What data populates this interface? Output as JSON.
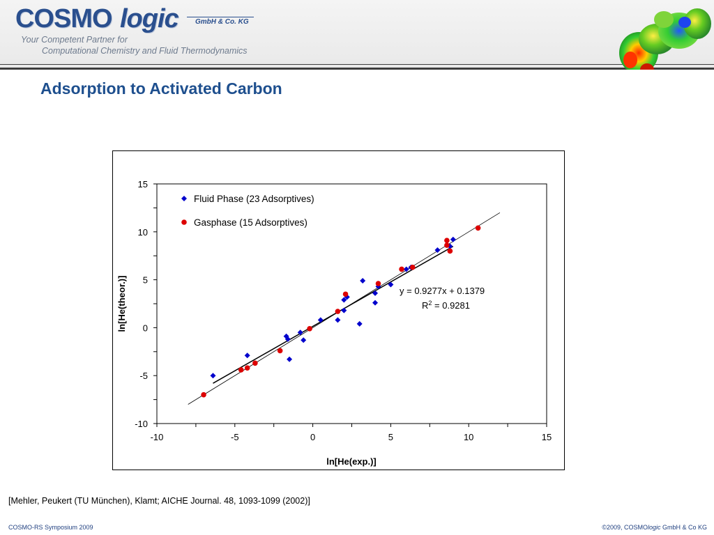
{
  "header": {
    "logo_cosmo": "COSMO",
    "logo_logic": "logic",
    "logo_gmbh": "GmbH & Co. KG",
    "tagline_1": "Your Competent Partner for",
    "tagline_2": "Computational Chemistry and Fluid Thermodynamics",
    "icon": "molecule-surface-icon"
  },
  "slide": {
    "title": "Adsorption to Activated Carbon"
  },
  "citation": "[Mehler, Peukert (TU München), Klamt; AICHE Journal. 48, 1093-1099 (2002)]",
  "footer": {
    "left": "COSMO-RS Symposium 2009",
    "right_prefix": "©2009, COSMO",
    "right_italic": "logic",
    "right_suffix": " GmbH & Co KG"
  },
  "chart_data": {
    "type": "scatter",
    "title": "",
    "xlabel": "ln[He(exp.)]",
    "ylabel": "ln[He(theor.)]",
    "xlim": [
      -10,
      15
    ],
    "ylim": [
      -10,
      15
    ],
    "xticks": [
      -10,
      -5,
      0,
      5,
      10,
      15
    ],
    "yticks": [
      -10,
      -5,
      0,
      5,
      10,
      15
    ],
    "grid": false,
    "legend": "top-left",
    "series": [
      {
        "name": "Fluid Phase (23 Adsorptives)",
        "marker": "diamond",
        "color": "#0000cc",
        "points": [
          [
            -6.4,
            -5.0
          ],
          [
            -4.2,
            -2.9
          ],
          [
            -1.7,
            -0.9
          ],
          [
            -1.6,
            -1.2
          ],
          [
            -1.5,
            -3.3
          ],
          [
            -0.8,
            -0.5
          ],
          [
            -0.6,
            -1.3
          ],
          [
            0.5,
            0.8
          ],
          [
            1.6,
            0.8
          ],
          [
            2.0,
            1.8
          ],
          [
            2.0,
            2.9
          ],
          [
            2.2,
            3.2
          ],
          [
            3.0,
            0.4
          ],
          [
            3.2,
            4.9
          ],
          [
            4.0,
            2.6
          ],
          [
            4.0,
            3.6
          ],
          [
            4.2,
            4.3
          ],
          [
            5.0,
            4.5
          ],
          [
            6.0,
            6.1
          ],
          [
            6.3,
            6.3
          ],
          [
            8.0,
            8.1
          ],
          [
            8.8,
            8.5
          ],
          [
            9.0,
            9.2
          ]
        ]
      },
      {
        "name": "Gasphase (15 Adsorptives)",
        "marker": "circle",
        "color": "#dd0000",
        "points": [
          [
            -7.0,
            -7.0
          ],
          [
            -4.6,
            -4.4
          ],
          [
            -4.2,
            -4.2
          ],
          [
            -3.7,
            -3.7
          ],
          [
            -2.1,
            -2.4
          ],
          [
            -0.2,
            -0.1
          ],
          [
            1.6,
            1.7
          ],
          [
            2.1,
            3.5
          ],
          [
            4.2,
            4.6
          ],
          [
            5.7,
            6.1
          ],
          [
            6.4,
            6.3
          ],
          [
            8.6,
            8.6
          ],
          [
            8.6,
            9.1
          ],
          [
            8.8,
            8.0
          ],
          [
            10.6,
            10.4
          ]
        ]
      }
    ],
    "lines": [
      {
        "kind": "identity",
        "x": [
          -8,
          12
        ],
        "y": [
          -8,
          12
        ],
        "color": "#000000"
      },
      {
        "kind": "regression",
        "x": [
          -6.4,
          9.0
        ],
        "y": [
          -5.799,
          8.487
        ],
        "color": "#000000"
      }
    ],
    "annotation": {
      "equation": "y = 0.9277x + 0.1379",
      "r2_label": "R",
      "r2_sup": "2",
      "r2_value": " = 0.9281"
    }
  }
}
